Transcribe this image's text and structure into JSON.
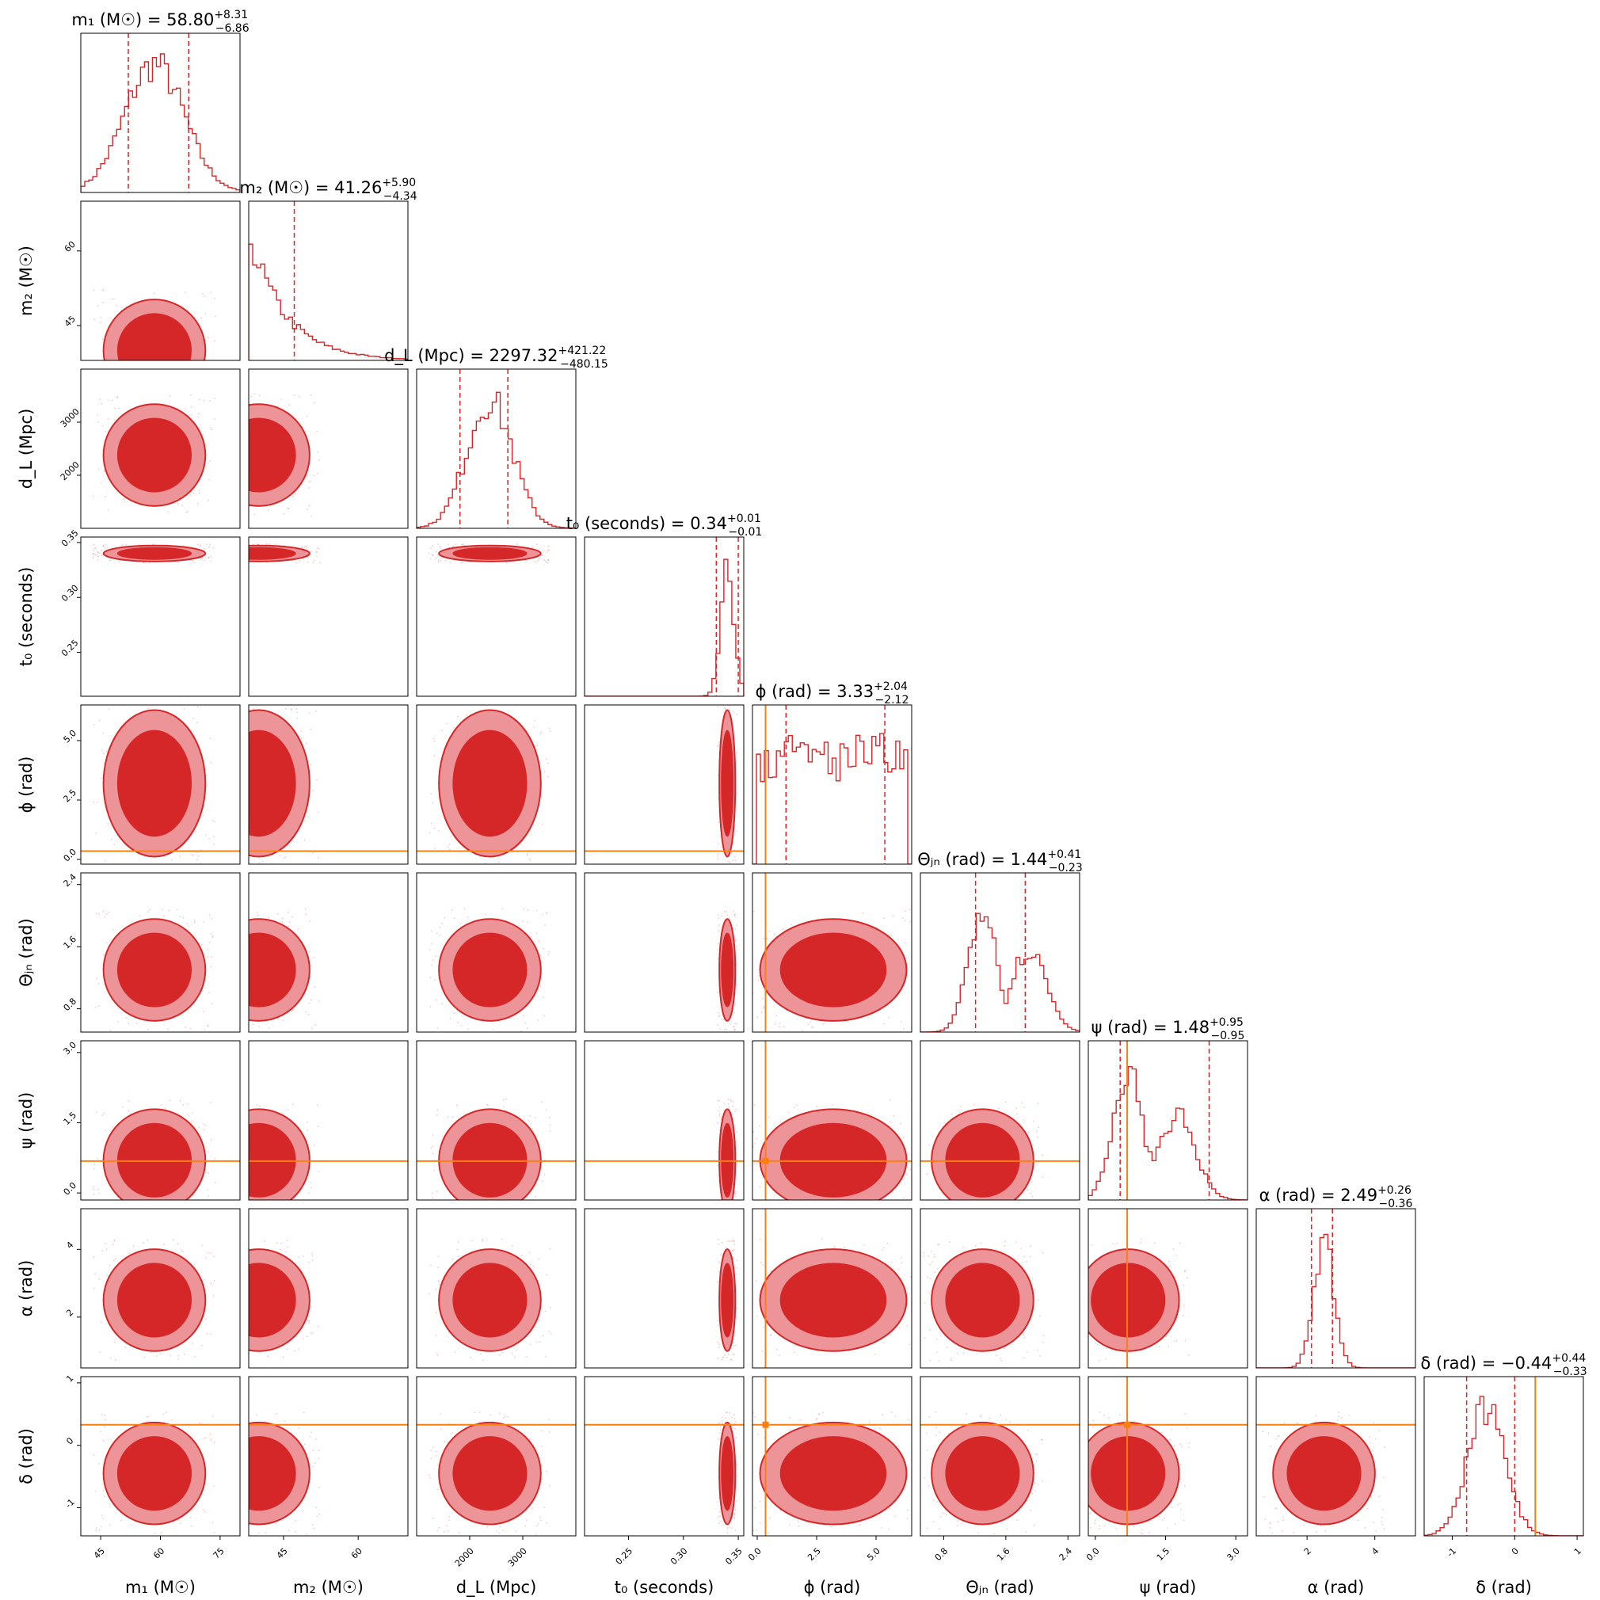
{
  "colors": {
    "main": "#d62728",
    "fill_inner": "#d62728",
    "fill_outer": "#ec9497",
    "truth": "#ff7f0e",
    "frame": "#000000"
  },
  "chart_data": {
    "type": "corner",
    "params": [
      {
        "id": "m1",
        "label": "m₁ (M☉)",
        "range": [
          40,
          80
        ],
        "ticks": [
          45,
          60,
          75
        ],
        "title": "m₁ (M☉) = 58.80",
        "err_up": "+8.31",
        "err_down": "−6.86",
        "median": 58.8,
        "q16": 51.94,
        "q84": 67.11,
        "truth": null,
        "hist": "gauss",
        "hist_mean": 58.5,
        "hist_sd": 7.5
      },
      {
        "id": "m2",
        "label": "m₂ (M☉)",
        "range": [
          38,
          70
        ],
        "ticks": [
          45,
          60
        ],
        "title": "m₂ (M☉) = 41.26",
        "err_up": "+5.90",
        "err_down": "−4.34",
        "median": 41.26,
        "q16": 36.92,
        "q84": 47.16,
        "truth": null,
        "hist": "decay",
        "hist_mean": 40,
        "hist_sd": 6
      },
      {
        "id": "dL",
        "label": "d_L (Mpc)",
        "range": [
          1000,
          4000
        ],
        "ticks": [
          2000,
          3000
        ],
        "title": "d_L (Mpc) = 2297.32",
        "err_up": "+421.22",
        "err_down": "−480.15",
        "median": 2297.32,
        "q16": 1817.17,
        "q84": 2718.54,
        "truth": null,
        "hist": "gauss",
        "hist_mean": 2380,
        "hist_sd": 430
      },
      {
        "id": "t0",
        "label": "t₀ (seconds)",
        "range": [
          0.21,
          0.355
        ],
        "ticks": [
          0.25,
          0.3,
          0.35
        ],
        "title": "t₀ (seconds) = 0.34",
        "err_up": "+0.01",
        "err_down": "−0.01",
        "median": 0.34,
        "q16": 0.33,
        "q84": 0.35,
        "truth": null,
        "hist": "spike",
        "hist_mean": 0.34,
        "hist_sd": 0.006
      },
      {
        "id": "phi",
        "label": "ϕ (rad)",
        "range": [
          -0.2,
          6.5
        ],
        "ticks": [
          0.0,
          2.5,
          5.0
        ],
        "title": "ϕ (rad) = 3.33",
        "err_up": "+2.04",
        "err_down": "−2.12",
        "median": 3.33,
        "q16": 1.21,
        "q84": 5.37,
        "truth": 0.35,
        "hist": "flat",
        "hist_mean": 3.2,
        "hist_sd": 3
      },
      {
        "id": "theta",
        "label": "Θⱼₙ (rad)",
        "range": [
          0.5,
          2.55
        ],
        "ticks": [
          0.8,
          1.6,
          2.4
        ],
        "title": "Θⱼₙ (rad) = 1.44",
        "err_up": "+0.41",
        "err_down": "−0.23",
        "median": 1.44,
        "q16": 1.21,
        "q84": 1.85,
        "truth": null,
        "hist": "bimodal",
        "hist_mean": 1.3,
        "hist_sd": 0.2
      },
      {
        "id": "psi",
        "label": "ψ (rad)",
        "range": [
          -0.15,
          3.25
        ],
        "ticks": [
          0.0,
          1.5,
          3.0
        ],
        "title": "ψ (rad) = 1.48",
        "err_up": "+0.95",
        "err_down": "−0.95",
        "median": 1.48,
        "q16": 0.53,
        "q84": 2.43,
        "truth": 0.68,
        "hist": "bimodal",
        "hist_mean": 0.7,
        "hist_sd": 0.35
      },
      {
        "id": "alpha",
        "label": "α (rad)",
        "range": [
          0.5,
          5.2
        ],
        "ticks": [
          2,
          4
        ],
        "title": "α (rad) = 2.49",
        "err_up": "+0.26",
        "err_down": "−0.36",
        "median": 2.49,
        "q16": 2.13,
        "q84": 2.75,
        "truth": null,
        "hist": "gauss",
        "hist_mean": 2.5,
        "hist_sd": 0.3
      },
      {
        "id": "delta",
        "label": "δ (rad)",
        "range": [
          -1.45,
          1.1
        ],
        "ticks": [
          -1,
          0,
          1
        ],
        "title": "δ (rad) = −0.44",
        "err_up": "+0.44",
        "err_down": "−0.33",
        "median": -0.44,
        "q16": -0.77,
        "q84": 0.0,
        "truth": 0.33,
        "hist": "gauss",
        "hist_mean": -0.45,
        "hist_sd": 0.3
      }
    ]
  }
}
